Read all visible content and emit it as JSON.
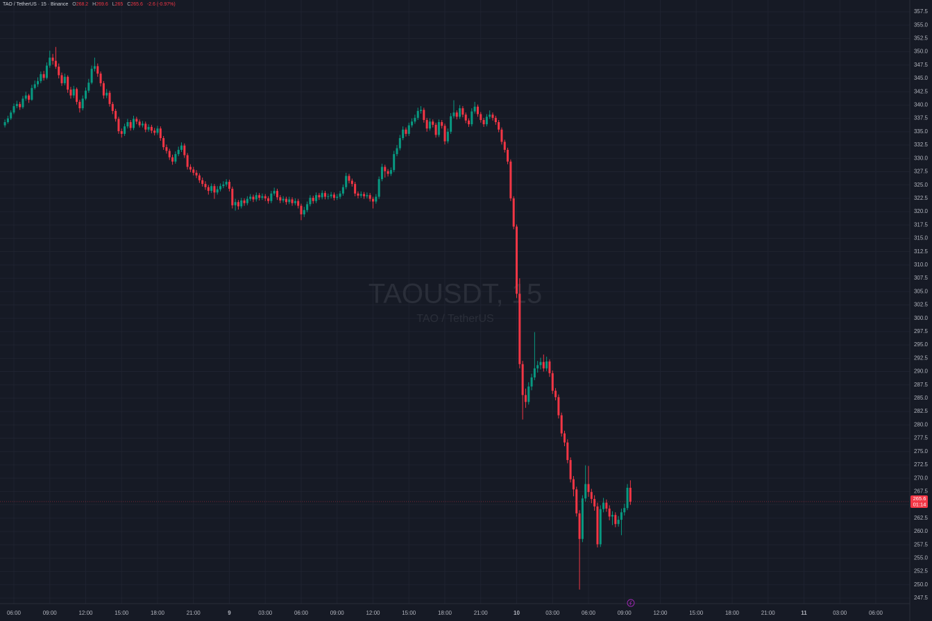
{
  "chart_data": {
    "type": "candlestick",
    "title": "TAOUSDT, 15",
    "subtitle": "TAO / TetherUS",
    "header": {
      "symbol": "TAO / TetherUS · 15 · Binance",
      "labels": [
        "O",
        "H",
        "L",
        "C"
      ],
      "change": "-2.6 (-0.97%)"
    },
    "countdown": "01:14",
    "up_color": "#089981",
    "down_color": "#f23645",
    "grid": true,
    "xlim": [
      -1.64,
      302.36
    ],
    "xticks": [
      {
        "value": 3,
        "label": "06:00"
      },
      {
        "value": 15,
        "label": "09:00"
      },
      {
        "value": 27,
        "label": "12:00"
      },
      {
        "value": 39,
        "label": "15:00"
      },
      {
        "value": 51,
        "label": "18:00"
      },
      {
        "value": 63,
        "label": "21:00"
      },
      {
        "value": 75,
        "label": "9"
      },
      {
        "value": 87,
        "label": "03:00"
      },
      {
        "value": 99,
        "label": "06:00"
      },
      {
        "value": 111,
        "label": "09:00"
      },
      {
        "value": 123,
        "label": "12:00"
      },
      {
        "value": 135,
        "label": "15:00"
      },
      {
        "value": 147,
        "label": "18:00"
      },
      {
        "value": 159,
        "label": "21:00"
      },
      {
        "value": 171,
        "label": "10"
      },
      {
        "value": 183,
        "label": "03:00"
      },
      {
        "value": 195,
        "label": "06:00"
      },
      {
        "value": 207,
        "label": "09:00"
      },
      {
        "value": 219,
        "label": "12:00"
      },
      {
        "value": 231,
        "label": "15:00"
      },
      {
        "value": 243,
        "label": "18:00"
      },
      {
        "value": 255,
        "label": "21:00"
      },
      {
        "value": 267,
        "label": "11"
      },
      {
        "value": 279,
        "label": "03:00"
      },
      {
        "value": 291,
        "label": "06:00"
      }
    ],
    "ylim": [
      246.46,
      359.71
    ],
    "yticks": [
      357.5,
      {
        "value": 355,
        "label": "355.0"
      },
      352.5,
      {
        "value": 350,
        "label": "350.0"
      },
      347.5,
      {
        "value": 345,
        "label": "345.0"
      },
      342.5,
      {
        "value": 340,
        "label": "340.0"
      },
      337.5,
      {
        "value": 335,
        "label": "335.0"
      },
      332.5,
      {
        "value": 330,
        "label": "330.0"
      },
      327.5,
      {
        "value": 325,
        "label": "325.0"
      },
      322.5,
      {
        "value": 320,
        "label": "320.0"
      },
      317.5,
      {
        "value": 315,
        "label": "315.0"
      },
      312.5,
      {
        "value": 310,
        "label": "310.0"
      },
      307.5,
      {
        "value": 305,
        "label": "305.0"
      },
      302.5,
      {
        "value": 300,
        "label": "300.0"
      },
      297.5,
      {
        "value": 295,
        "label": "295.0"
      },
      292.5,
      {
        "value": 290,
        "label": "290.0"
      },
      287.5,
      {
        "value": 285,
        "label": "285.0"
      },
      282.5,
      {
        "value": 280,
        "label": "280.0"
      },
      277.5,
      {
        "value": 275,
        "label": "275.0"
      },
      272.5,
      {
        "value": 270,
        "label": "270.0"
      },
      267.5,
      {
        "value": 265,
        "label": "265.0"
      },
      262.5,
      {
        "value": 260,
        "label": "260.0"
      },
      257.5,
      {
        "value": 255,
        "label": "255.0"
      },
      252.5,
      {
        "value": 250,
        "label": "250.0"
      },
      247.5
    ],
    "open": [
      336.2,
      336.8,
      337.5,
      338.6,
      339.8,
      340.2,
      339.6,
      341.2,
      341.8,
      341.0,
      343.2,
      343.9,
      344.5,
      345.8,
      345.1,
      347.4,
      348.9,
      348.3,
      347.2,
      345.6,
      344.1,
      345.3,
      342.9,
      341.8,
      343.0,
      340.6,
      339.4,
      341.2,
      342.7,
      344.2,
      346.8,
      347.3,
      345.9,
      344.1,
      341.8,
      342.3,
      340.2,
      338.9,
      337.4,
      335.1,
      334.6,
      336.0,
      336.8,
      335.7,
      337.4,
      336.9,
      336.2,
      336.5,
      335.4,
      335.9,
      335.2,
      334.8,
      335.6,
      333.8,
      332.1,
      331.4,
      330.2,
      329.4,
      330.8,
      331.6,
      332.4,
      330.6,
      328.4,
      327.9,
      327.3,
      326.8,
      325.9,
      325.2,
      324.6,
      323.9,
      324.8,
      323.6,
      324.2,
      324.8,
      325.1,
      325.6,
      324.3,
      321.2,
      321.8,
      321.0,
      322.1,
      321.6,
      322.4,
      322.8,
      322.3,
      323.1,
      322.6,
      322.9,
      322.5,
      322.0,
      323.4,
      323.9,
      322.7,
      322.1,
      322.4,
      321.8,
      322.3,
      321.6,
      322.0,
      321.1,
      319.5,
      320.3,
      321.4,
      322.6,
      322.0,
      323.1,
      322.7,
      323.5,
      322.8,
      322.9,
      323.2,
      322.6,
      322.8,
      323.4,
      324.6,
      326.7,
      325.8,
      325.2,
      323.4,
      323.0,
      323.3,
      322.9,
      323.1,
      322.4,
      321.9,
      322.8,
      326.1,
      328.4,
      327.6,
      327.1,
      327.8,
      330.8,
      331.9,
      333.8,
      335.4,
      334.6,
      336.2,
      336.9,
      337.6,
      338.9,
      339.1,
      337.2,
      335.6,
      336.9,
      336.3,
      334.4,
      336.8,
      336.1,
      333.2,
      335.0,
      337.9,
      338.6,
      337.8,
      339.4,
      338.2,
      337.1,
      336.4,
      338.8,
      339.7,
      338.3,
      337.2,
      336.4,
      337.8,
      338.2,
      337.6,
      336.8,
      335.4,
      333.1,
      331.6,
      329.4,
      322.5,
      317.2,
      304.6,
      291.4,
      285.6,
      284.3,
      287.2,
      288.9,
      290.6,
      291.2,
      291.8,
      290.6,
      291.9,
      289.7,
      286.4,
      285.2,
      281.8,
      278.4,
      276.7,
      273.4,
      269.8,
      267.9,
      263.4,
      258.6,
      266.2,
      268.9,
      267.4,
      266.1,
      264.7,
      257.6,
      264.2,
      265.4,
      264.3,
      262.8,
      263.1,
      261.4,
      262.2,
      263.6,
      264.4,
      268.2
    ],
    "high": [
      337.3,
      338.0,
      339.0,
      340.3,
      340.8,
      340.6,
      341.7,
      342.5,
      342.1,
      343.8,
      344.6,
      345.2,
      346.3,
      346.4,
      348.0,
      350.2,
      349.6,
      350.9,
      347.8,
      346.1,
      345.9,
      345.6,
      343.4,
      343.6,
      343.3,
      341.0,
      341.8,
      343.3,
      344.9,
      347.4,
      348.9,
      347.8,
      346.3,
      344.5,
      343.0,
      342.7,
      340.6,
      339.3,
      337.8,
      335.6,
      336.5,
      337.4,
      337.2,
      338.0,
      337.8,
      337.3,
      337.0,
      336.9,
      336.4,
      336.3,
      335.7,
      336.1,
      336.0,
      334.2,
      332.6,
      331.8,
      330.7,
      331.3,
      332.2,
      333.0,
      332.8,
      331.0,
      328.9,
      328.4,
      327.8,
      327.2,
      326.4,
      325.7,
      325.0,
      325.3,
      325.2,
      324.8,
      325.3,
      325.7,
      326.1,
      326.0,
      324.7,
      322.4,
      322.2,
      322.6,
      322.5,
      322.9,
      323.3,
      323.2,
      323.6,
      323.5,
      323.4,
      323.3,
      322.9,
      323.9,
      324.5,
      324.3,
      323.1,
      322.9,
      322.8,
      322.8,
      322.7,
      322.5,
      322.4,
      321.5,
      320.9,
      321.9,
      323.1,
      323.0,
      323.6,
      323.5,
      324.0,
      323.9,
      323.4,
      323.7,
      323.6,
      323.3,
      323.9,
      325.1,
      327.3,
      327.1,
      326.2,
      325.6,
      323.8,
      323.8,
      323.7,
      323.6,
      323.5,
      322.8,
      323.3,
      326.6,
      329.0,
      328.8,
      328.0,
      328.3,
      331.4,
      332.5,
      334.4,
      336.0,
      335.8,
      336.7,
      337.5,
      338.2,
      339.5,
      339.8,
      339.5,
      337.6,
      337.5,
      337.3,
      336.7,
      337.3,
      337.2,
      336.5,
      335.6,
      338.5,
      340.9,
      339.0,
      340.0,
      339.8,
      338.6,
      337.5,
      339.4,
      340.6,
      340.1,
      338.7,
      337.6,
      338.3,
      339.0,
      338.6,
      338.0,
      337.2,
      335.8,
      333.5,
      332.0,
      329.8,
      322.9,
      317.6,
      307.5,
      292.0,
      286.8,
      288.0,
      289.6,
      297.4,
      292.0,
      292.6,
      293.2,
      292.8,
      292.3,
      290.2,
      286.9,
      285.7,
      282.3,
      278.9,
      277.3,
      273.9,
      270.4,
      268.4,
      264.0,
      266.8,
      272.4,
      272.3,
      268.0,
      266.8,
      265.4,
      264.9,
      266.3,
      266.0,
      264.9,
      263.8,
      263.6,
      262.9,
      264.3,
      265.2,
      268.9,
      269.6
    ],
    "low": [
      335.8,
      336.5,
      337.2,
      338.3,
      339.4,
      339.1,
      339.3,
      340.8,
      340.4,
      340.8,
      342.9,
      343.4,
      344.1,
      344.6,
      344.8,
      347.0,
      347.6,
      346.8,
      345.0,
      343.6,
      343.7,
      342.3,
      341.2,
      341.3,
      340.1,
      338.6,
      339.0,
      340.9,
      342.3,
      343.9,
      346.3,
      345.3,
      343.5,
      341.2,
      341.3,
      339.7,
      338.3,
      336.9,
      334.6,
      333.9,
      334.2,
      335.6,
      335.2,
      335.3,
      336.4,
      335.8,
      335.8,
      334.9,
      335.0,
      334.7,
      334.3,
      334.4,
      333.3,
      331.6,
      330.9,
      329.7,
      328.8,
      329.0,
      330.4,
      331.2,
      330.1,
      327.9,
      327.4,
      326.8,
      326.3,
      325.4,
      324.7,
      324.1,
      323.2,
      323.5,
      322.4,
      323.2,
      323.8,
      324.4,
      324.7,
      323.8,
      320.6,
      320.2,
      320.4,
      320.6,
      321.1,
      321.2,
      322.0,
      321.8,
      321.9,
      322.1,
      322.2,
      322.0,
      321.5,
      321.6,
      323.0,
      322.2,
      321.6,
      321.7,
      321.3,
      321.4,
      321.1,
      321.2,
      320.6,
      318.4,
      319.0,
      319.9,
      321.0,
      321.5,
      321.6,
      322.2,
      322.3,
      322.3,
      322.3,
      322.5,
      322.1,
      322.2,
      322.4,
      323.0,
      324.2,
      325.3,
      324.7,
      322.9,
      322.5,
      322.6,
      322.4,
      322.5,
      321.9,
      320.6,
      321.5,
      322.4,
      325.7,
      326.4,
      326.6,
      326.7,
      327.4,
      330.4,
      331.5,
      333.4,
      334.1,
      334.2,
      335.8,
      336.5,
      337.2,
      338.4,
      336.7,
      335.0,
      335.2,
      335.8,
      333.9,
      334.0,
      335.6,
      332.6,
      332.8,
      334.6,
      337.5,
      337.3,
      337.4,
      337.7,
      336.6,
      335.9,
      336.0,
      338.4,
      337.8,
      336.7,
      335.9,
      336.0,
      337.4,
      337.1,
      336.3,
      334.9,
      332.6,
      331.1,
      328.9,
      322.0,
      316.7,
      303.8,
      290.6,
      281.0,
      283.2,
      283.8,
      286.5,
      288.4,
      289.8,
      290.4,
      290.0,
      290.1,
      289.0,
      285.8,
      284.6,
      281.2,
      277.8,
      276.0,
      272.8,
      269.2,
      266.6,
      262.8,
      249.1,
      258.0,
      265.6,
      266.5,
      265.3,
      263.9,
      257.0,
      257.1,
      263.6,
      263.7,
      262.1,
      261.2,
      260.8,
      260.9,
      259.3,
      263.0,
      264.0,
      265.0
    ],
    "close": [
      336.8,
      337.5,
      338.6,
      339.8,
      340.2,
      339.6,
      341.2,
      341.8,
      341.0,
      343.2,
      343.9,
      344.5,
      345.8,
      345.1,
      347.4,
      348.9,
      348.3,
      347.2,
      345.6,
      344.1,
      345.3,
      342.9,
      341.8,
      343.0,
      340.6,
      339.4,
      341.2,
      342.7,
      344.2,
      346.8,
      347.3,
      345.9,
      344.1,
      341.8,
      342.3,
      340.2,
      338.9,
      337.4,
      335.1,
      334.6,
      336.0,
      336.8,
      335.7,
      337.4,
      336.9,
      336.2,
      336.5,
      335.4,
      335.9,
      335.2,
      334.8,
      335.6,
      333.8,
      332.1,
      331.4,
      330.2,
      329.4,
      330.8,
      331.6,
      332.4,
      330.6,
      328.4,
      327.9,
      327.3,
      326.8,
      325.9,
      325.2,
      324.6,
      323.9,
      324.8,
      323.6,
      324.2,
      324.8,
      325.1,
      325.6,
      324.3,
      321.2,
      321.8,
      321.0,
      322.1,
      321.6,
      322.4,
      322.8,
      322.3,
      323.1,
      322.6,
      322.9,
      322.5,
      322.0,
      323.4,
      323.9,
      322.7,
      322.1,
      322.4,
      321.8,
      322.3,
      321.6,
      322.0,
      321.1,
      319.5,
      320.3,
      321.4,
      322.6,
      322.0,
      323.1,
      322.7,
      323.5,
      322.8,
      322.9,
      323.2,
      322.6,
      322.8,
      323.4,
      324.6,
      326.7,
      325.8,
      325.2,
      323.4,
      323.0,
      323.3,
      322.9,
      323.1,
      322.4,
      321.9,
      322.8,
      326.1,
      328.4,
      327.6,
      327.1,
      327.8,
      330.8,
      331.9,
      333.8,
      335.4,
      334.6,
      336.2,
      336.9,
      337.6,
      338.9,
      339.1,
      337.2,
      335.6,
      336.9,
      336.3,
      334.4,
      336.8,
      336.1,
      333.2,
      335.0,
      337.9,
      338.6,
      337.8,
      339.4,
      338.2,
      337.1,
      336.4,
      338.8,
      339.7,
      338.3,
      337.2,
      336.4,
      337.8,
      338.2,
      337.6,
      336.8,
      335.4,
      333.1,
      331.6,
      329.4,
      322.5,
      317.2,
      304.6,
      291.4,
      285.6,
      284.3,
      287.2,
      288.9,
      290.6,
      291.2,
      291.8,
      290.6,
      291.9,
      289.7,
      286.4,
      285.2,
      281.8,
      278.4,
      276.7,
      273.4,
      269.8,
      267.9,
      263.4,
      258.6,
      266.2,
      268.9,
      267.4,
      266.1,
      264.7,
      257.6,
      264.2,
      265.4,
      264.3,
      262.8,
      263.1,
      261.4,
      262.2,
      263.6,
      264.4,
      268.2,
      265.6
    ]
  }
}
